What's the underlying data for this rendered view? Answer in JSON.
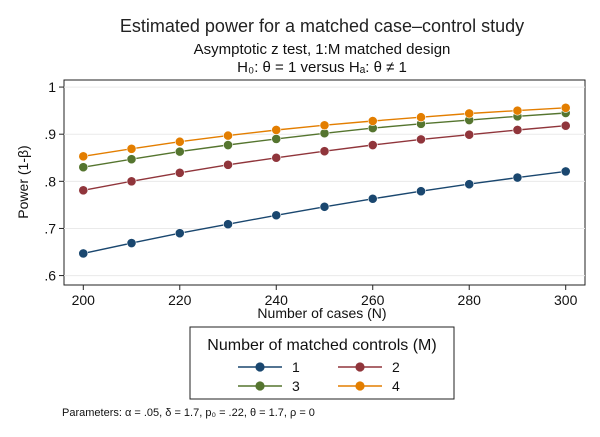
{
  "chart_data": {
    "type": "line",
    "title": "Estimated power for a matched case–control study",
    "subtitle": "Asymptotic z test, 1:M matched design",
    "hypothesis": "H₀: θ = 1  versus  Hₐ: θ ≠ 1",
    "xlabel": "Number of cases (N)",
    "ylabel": "Power (1-β)",
    "xlim": [
      200,
      300
    ],
    "ylim": [
      0.6,
      1.0
    ],
    "x_ticks": [
      200,
      220,
      240,
      260,
      280,
      300
    ],
    "y_ticks": [
      0.6,
      0.7,
      0.8,
      0.9,
      1.0
    ],
    "y_tick_labels": [
      ".6",
      ".7",
      ".8",
      ".9",
      "1"
    ],
    "grid": "horizontal",
    "x": [
      200,
      210,
      220,
      230,
      240,
      250,
      260,
      270,
      280,
      290,
      300
    ],
    "series": [
      {
        "name": "1",
        "color": "#1a476f",
        "values": [
          0.647,
          0.669,
          0.69,
          0.709,
          0.728,
          0.746,
          0.763,
          0.779,
          0.794,
          0.808,
          0.821
        ]
      },
      {
        "name": "2",
        "color": "#90353b",
        "values": [
          0.781,
          0.8,
          0.818,
          0.835,
          0.85,
          0.864,
          0.877,
          0.889,
          0.899,
          0.909,
          0.918
        ]
      },
      {
        "name": "3",
        "color": "#55752f",
        "values": [
          0.83,
          0.847,
          0.863,
          0.877,
          0.89,
          0.902,
          0.913,
          0.922,
          0.93,
          0.938,
          0.945
        ]
      },
      {
        "name": "4",
        "color": "#e37e00",
        "values": [
          0.853,
          0.869,
          0.884,
          0.897,
          0.909,
          0.919,
          0.928,
          0.936,
          0.944,
          0.95,
          0.956
        ]
      }
    ],
    "legend_title": "Number of matched controls (M)",
    "legend_position": "bottom",
    "note": "Parameters: α = .05, δ = 1.7, p₀ = .22, θ = 1.7, ρ = 0"
  }
}
